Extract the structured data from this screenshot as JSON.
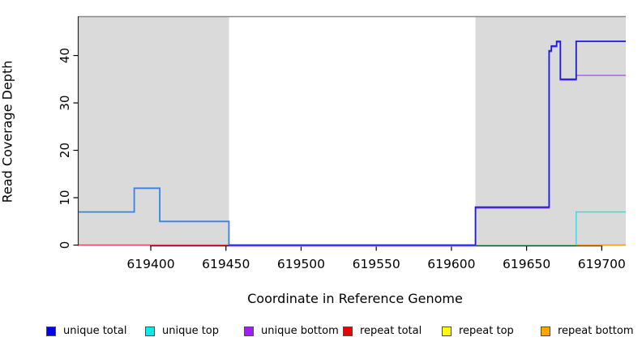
{
  "chart_data": {
    "type": "line",
    "title": "",
    "xlabel": "Coordinate in Reference Genome",
    "ylabel": "Read Coverage Depth",
    "xlim": [
      619352,
      619716
    ],
    "ylim": [
      0,
      48.3
    ],
    "x_ticks": [
      619400,
      619450,
      619500,
      619550,
      619600,
      619650,
      619700
    ],
    "y_ticks": [
      0,
      10,
      20,
      30,
      40
    ],
    "grid": false,
    "background": "#ffffff",
    "shaded_regions": [
      {
        "name": "left-gray-region",
        "x0": 619352,
        "x1": 619452,
        "color": "#dadada"
      },
      {
        "name": "right-gray-region",
        "x0": 619616,
        "x1": 619716,
        "color": "#dadada"
      }
    ],
    "frame_top_color": "#8a8a8a",
    "series": [
      {
        "name": "repeat total (zero baseline)",
        "color": "#e84455",
        "width": 1.4,
        "dy": 0,
        "points": [
          [
            619352,
            0
          ],
          [
            619452,
            0
          ]
        ]
      },
      {
        "name": "unique top / repeat top overlap (zero baseline)",
        "color": "#7fcd8c",
        "width": 1.5,
        "dy": 0,
        "points": [
          [
            619616,
            0
          ],
          [
            619683,
            0
          ]
        ]
      },
      {
        "name": "repeat bottom",
        "color": "#ffa018",
        "width": 1.8,
        "dy": 0,
        "points": [
          [
            619683,
            0
          ],
          [
            619716,
            0
          ]
        ]
      },
      {
        "name": "unique top",
        "color": "#30e0e8",
        "width": 1.5,
        "dy": 0,
        "points": [
          [
            619683,
            0
          ],
          [
            619683,
            7
          ],
          [
            619716,
            7
          ]
        ]
      },
      {
        "name": "unique bottom",
        "color": "#a96fe3",
        "width": 1.6,
        "dy": 1.2,
        "points": [
          [
            619452,
            0
          ],
          [
            619616,
            0
          ],
          [
            619616,
            8
          ],
          [
            619665,
            8
          ],
          [
            619665,
            41
          ],
          [
            619666.5,
            41
          ],
          [
            619666.5,
            42
          ],
          [
            619670,
            42
          ],
          [
            619670,
            43
          ],
          [
            619672.5,
            43
          ],
          [
            619672.5,
            35
          ],
          [
            619683,
            35
          ],
          [
            619683,
            36
          ],
          [
            619716,
            36
          ]
        ]
      },
      {
        "name": "unique total (left repeat block)",
        "color": "#3a80e8",
        "width": 1.8,
        "dy": 0,
        "points": [
          [
            619352,
            7
          ],
          [
            619389,
            7
          ],
          [
            619389,
            12
          ],
          [
            619406,
            12
          ],
          [
            619406,
            5
          ],
          [
            619452,
            5
          ],
          [
            619452,
            0
          ]
        ]
      },
      {
        "name": "unique total",
        "color": "#1b1bdc",
        "width": 1.8,
        "dy": 0,
        "points": [
          [
            619452,
            0
          ],
          [
            619616,
            0
          ],
          [
            619616,
            8
          ],
          [
            619665,
            8
          ],
          [
            619665,
            41
          ],
          [
            619666.5,
            41
          ],
          [
            619666.5,
            42
          ],
          [
            619670,
            42
          ],
          [
            619670,
            43
          ],
          [
            619672.5,
            43
          ],
          [
            619672.5,
            35
          ],
          [
            619683,
            35
          ],
          [
            619683,
            43
          ],
          [
            619716,
            43
          ]
        ]
      }
    ],
    "legend": [
      {
        "label": "unique total",
        "color": "#0000ee"
      },
      {
        "label": "unique top",
        "color": "#00eeee"
      },
      {
        "label": "unique bottom",
        "color": "#a020f0"
      },
      {
        "label": "repeat total",
        "color": "#ee0000"
      },
      {
        "label": "repeat top",
        "color": "#ffff00"
      },
      {
        "label": "repeat bottom",
        "color": "#ffa500"
      }
    ],
    "legend_position": "bottom"
  }
}
